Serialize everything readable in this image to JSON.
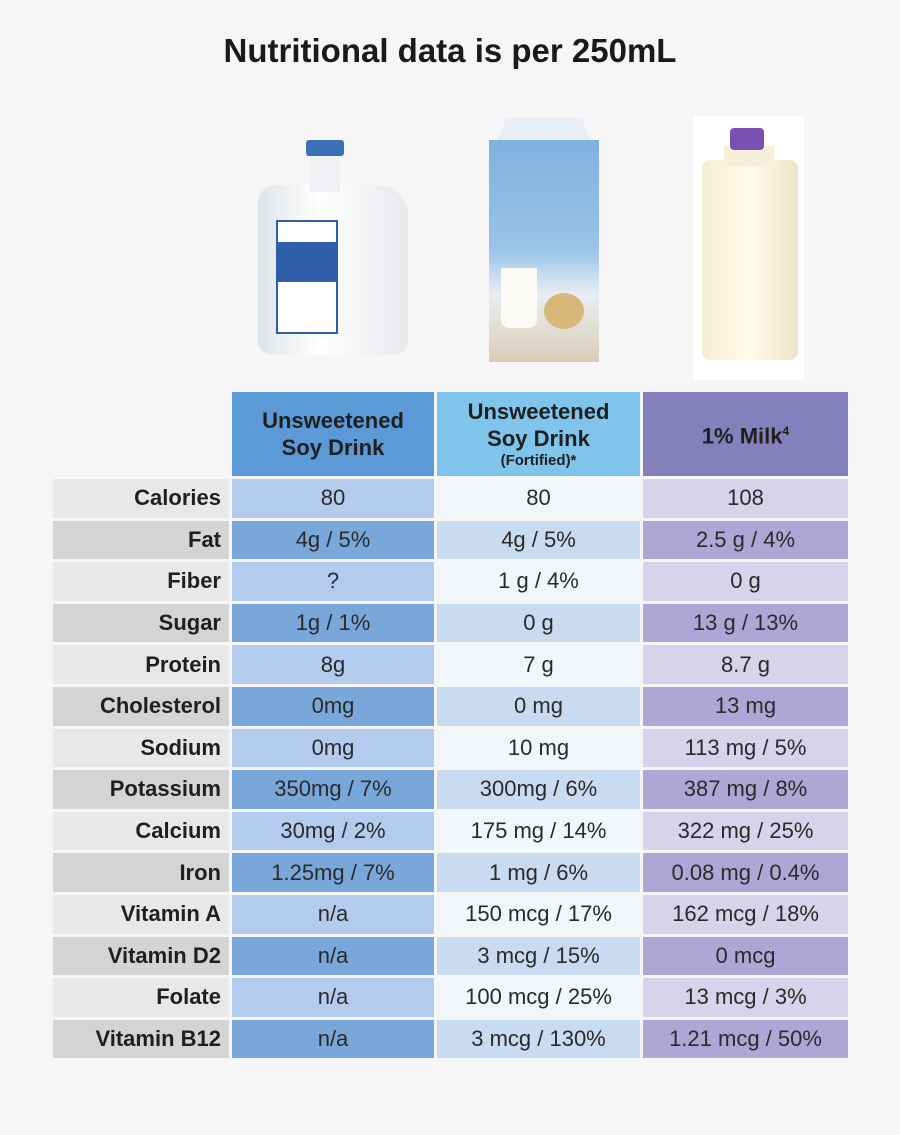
{
  "title": "Nutritional data is per 250mL",
  "columns": [
    {
      "line1": "Unsweetened",
      "line2": "Soy Drink",
      "note": ""
    },
    {
      "line1": "Unsweetened",
      "line2": "Soy Drink",
      "note": "(Fortified)*"
    },
    {
      "line1": "1% Milk",
      "sup": "4"
    }
  ],
  "colors": {
    "soy": "#5b9ad6",
    "fortified": "#80c4eb",
    "milk": "#857fbb"
  },
  "rows": [
    {
      "label": "Calories",
      "v": [
        "80",
        "80",
        "108"
      ]
    },
    {
      "label": "Fat",
      "v": [
        "4g / 5%",
        "4g / 5%",
        "2.5 g / 4%"
      ]
    },
    {
      "label": "Fiber",
      "v": [
        "?",
        "1 g / 4%",
        "0 g"
      ]
    },
    {
      "label": "Sugar",
      "v": [
        "1g / 1%",
        "0 g",
        "13 g / 13%"
      ]
    },
    {
      "label": "Protein",
      "v": [
        "8g",
        "7 g",
        "8.7 g"
      ]
    },
    {
      "label": "Cholesterol",
      "v": [
        "0mg",
        "0 mg",
        "13 mg"
      ]
    },
    {
      "label": "Sodium",
      "v": [
        "0mg",
        "10 mg",
        "113 mg / 5%"
      ]
    },
    {
      "label": "Potassium",
      "v": [
        "350mg / 7%",
        "300mg / 6%",
        "387 mg / 8%"
      ]
    },
    {
      "label": "Calcium",
      "v": [
        "30mg  / 2%",
        "175 mg  / 14%",
        "322 mg  / 25%"
      ]
    },
    {
      "label": "Iron",
      "v": [
        "1.25mg / 7%",
        "1 mg / 6%",
        "0.08 mg / 0.4%"
      ]
    },
    {
      "label": "Vitamin A",
      "v": [
        "n/a",
        "150 mcg / 17%",
        "162 mcg / 18%"
      ]
    },
    {
      "label": "Vitamin D2",
      "v": [
        "n/a",
        "3 mcg / 15%",
        "0 mcg"
      ]
    },
    {
      "label": "Folate",
      "v": [
        "n/a",
        "100 mcg / 25%",
        "13 mcg / 3%"
      ]
    },
    {
      "label": "Vitamin B12",
      "v": [
        "n/a",
        "3 mcg / 130%",
        "1.21 mcg / 50%"
      ]
    }
  ]
}
